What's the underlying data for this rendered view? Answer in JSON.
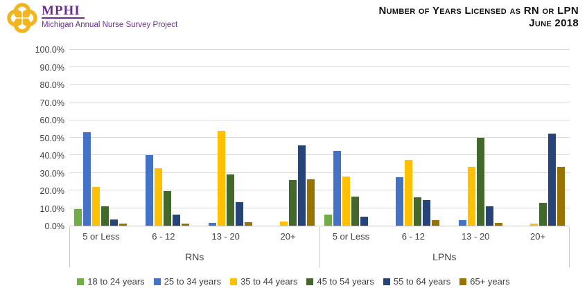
{
  "header": {
    "logo_acronym": "MPHI",
    "logo_tagline": "Michigan Annual Nurse Survey Project",
    "title_line1": "Number of Years Licensed as RN or LPN",
    "title_line2": "June 2018"
  },
  "colors": {
    "logo_gold": "#F2B51D",
    "logo_purple": "#6B2E8F",
    "gridline": "#D9D9D9",
    "axis_border": "#C9C9C9",
    "axis_text": "#404040"
  },
  "chart_data": {
    "type": "bar",
    "title": "Number of Years Licensed as RN or LPN",
    "subtitle": "June 2018",
    "xlabel": "",
    "ylabel": "",
    "ylim": [
      0,
      100
    ],
    "ytick_step": 10,
    "ytick_suffix": ".0%",
    "grid": true,
    "legend_position": "bottom",
    "groups": [
      {
        "label": "RNs",
        "categories": [
          "5 or Less",
          "6 - 12",
          "13 - 20",
          "20+"
        ]
      },
      {
        "label": "LPNs",
        "categories": [
          "5 or Less",
          "6 - 12",
          "13 - 20",
          "20+"
        ]
      }
    ],
    "series": [
      {
        "name": "18 to 24 years",
        "color": "#70AD47",
        "values": [
          9.5,
          0,
          0,
          0,
          6.5,
          0,
          0,
          0
        ]
      },
      {
        "name": "25 to 34 years",
        "color": "#4472C4",
        "values": [
          53,
          40,
          1.5,
          0,
          42.5,
          27.5,
          3,
          0
        ]
      },
      {
        "name": "35 to 44 years",
        "color": "#FFC000",
        "values": [
          22,
          32.5,
          54,
          2.5,
          28,
          37.5,
          33.5,
          1
        ]
      },
      {
        "name": "45 to 54 years",
        "color": "#43682B",
        "values": [
          11,
          19.5,
          29,
          26,
          16.5,
          16,
          50,
          13
        ]
      },
      {
        "name": "55 to 64 years",
        "color": "#264478",
        "values": [
          3.5,
          6.5,
          13.5,
          45.5,
          5,
          14.5,
          11,
          52.5
        ]
      },
      {
        "name": "65+ years",
        "color": "#997300",
        "values": [
          1,
          1,
          2,
          26.5,
          0,
          3,
          1.5,
          33.5
        ]
      }
    ]
  }
}
